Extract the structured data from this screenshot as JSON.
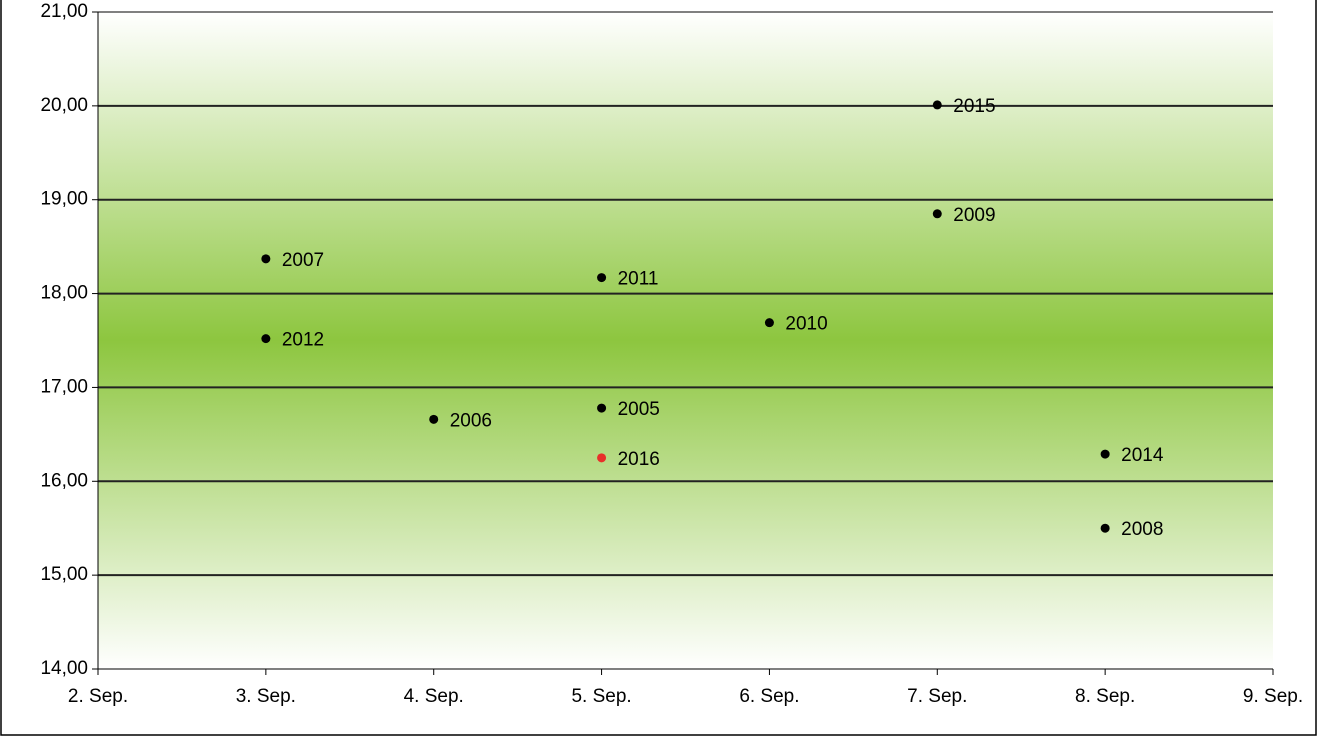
{
  "chart_data": {
    "type": "scatter",
    "categories": [
      "2. Sep.",
      "3. Sep.",
      "4. Sep.",
      "5. Sep.",
      "6. Sep.",
      "7. Sep.",
      "8. Sep.",
      "9. Sep."
    ],
    "points": [
      {
        "label": "2005",
        "x": "5. Sep.",
        "y": 16.78,
        "color": "#000000"
      },
      {
        "label": "2006",
        "x": "4. Sep.",
        "y": 16.66,
        "color": "#000000"
      },
      {
        "label": "2007",
        "x": "3. Sep.",
        "y": 18.37,
        "color": "#000000"
      },
      {
        "label": "2008",
        "x": "8. Sep.",
        "y": 15.5,
        "color": "#000000"
      },
      {
        "label": "2009",
        "x": "7. Sep.",
        "y": 18.85,
        "color": "#000000"
      },
      {
        "label": "2010",
        "x": "6. Sep.",
        "y": 17.69,
        "color": "#000000"
      },
      {
        "label": "2011",
        "x": "5. Sep.",
        "y": 18.17,
        "color": "#000000"
      },
      {
        "label": "2012",
        "x": "3. Sep.",
        "y": 17.52,
        "color": "#000000"
      },
      {
        "label": "2014",
        "x": "8. Sep.",
        "y": 16.29,
        "color": "#000000"
      },
      {
        "label": "2015",
        "x": "7. Sep.",
        "y": 20.01,
        "color": "#000000"
      },
      {
        "label": "2016",
        "x": "5. Sep.",
        "y": 16.25,
        "color": "#e8302a"
      }
    ],
    "ylim": [
      14,
      21
    ],
    "yticks": [
      {
        "value": 14,
        "label": "14,00"
      },
      {
        "value": 15,
        "label": "15,00"
      },
      {
        "value": 16,
        "label": "16,00"
      },
      {
        "value": 17,
        "label": "17,00"
      },
      {
        "value": 18,
        "label": "18,00"
      },
      {
        "value": 19,
        "label": "19,00"
      },
      {
        "value": 20,
        "label": "20,00"
      },
      {
        "value": 21,
        "label": "21,00"
      }
    ],
    "grid": true
  }
}
